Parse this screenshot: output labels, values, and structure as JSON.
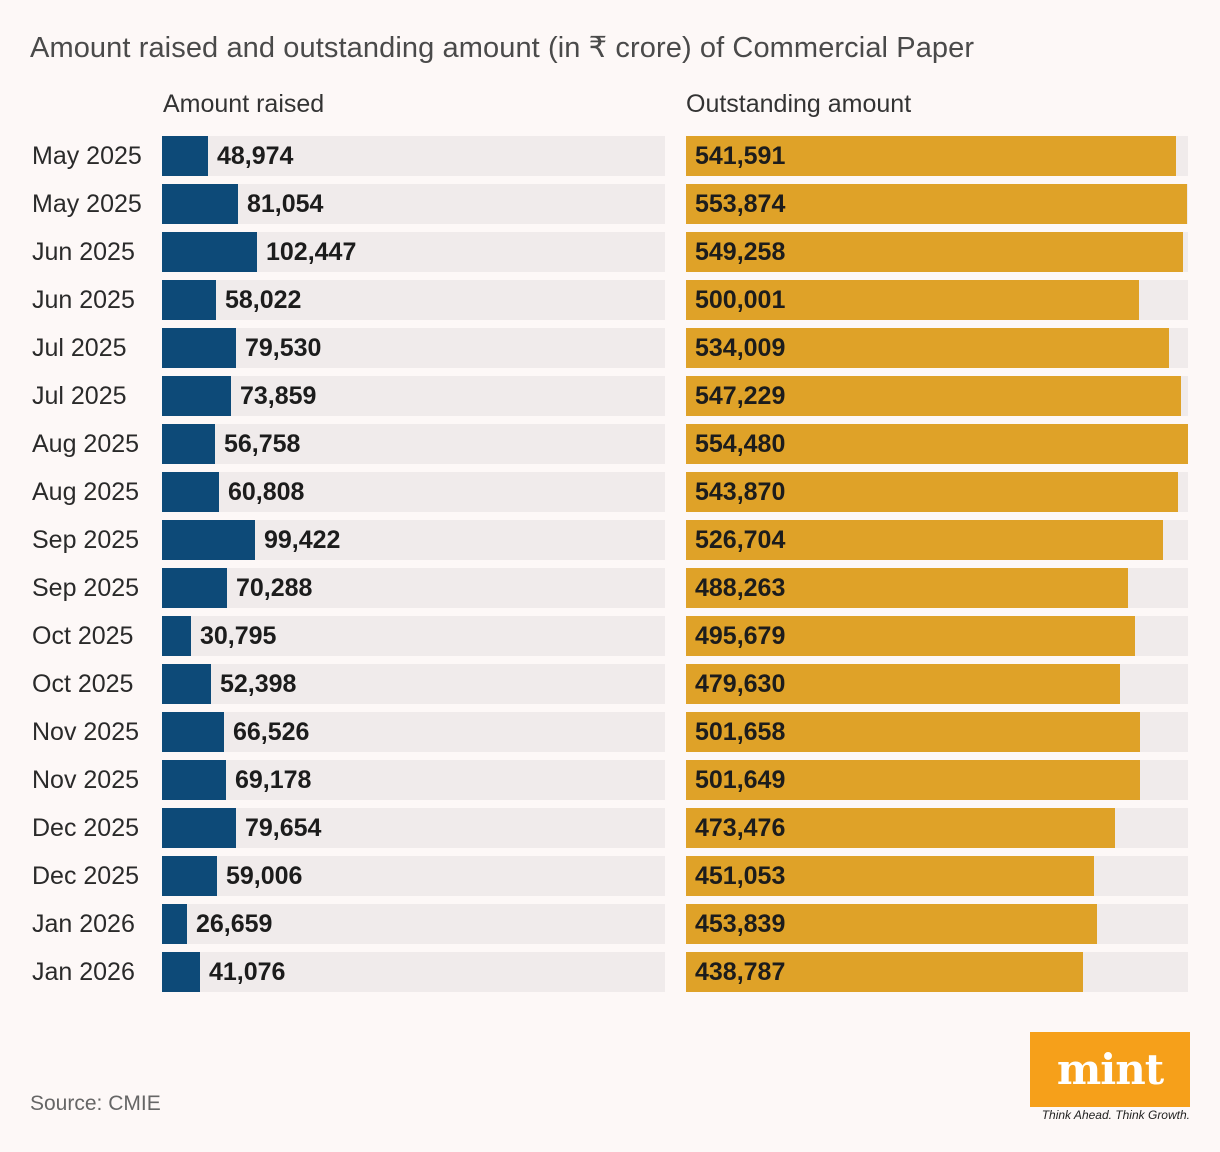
{
  "header": {
    "title": "Amount raised and outstanding amount (in ₹ crore) of Commercial Paper"
  },
  "footer": {
    "source": "Source: CMIE",
    "logo_text": "mint",
    "tagline": "Think Ahead. Think Growth."
  },
  "colors": {
    "raised": "#0d4a78",
    "outstanding": "#dfa228",
    "track": "#f0ebeb",
    "logo": "#f6a01a"
  },
  "chart_data": {
    "type": "bar",
    "orientation": "horizontal",
    "title": "Amount raised and outstanding amount (in ₹ crore) of Commercial Paper",
    "categories": [
      "May 2025",
      "May 2025",
      "Jun 2025",
      "Jun 2025",
      "Jul 2025",
      "Jul 2025",
      "Aug 2025",
      "Aug 2025",
      "Sep 2025",
      "Sep 2025",
      "Oct 2025",
      "Oct 2025",
      "Nov 2025",
      "Nov 2025",
      "Dec 2025",
      "Dec 2025",
      "Jan 2026",
      "Jan 2026"
    ],
    "series": [
      {
        "name": "Amount raised",
        "values": [
          48974,
          81054,
          102447,
          58022,
          79530,
          73859,
          56758,
          60808,
          99422,
          70288,
          30795,
          52398,
          66526,
          69178,
          79654,
          59006,
          26659,
          41076
        ],
        "labels": [
          "48,974",
          "81,054",
          "102,447",
          "58,022",
          "79,530",
          "73,859",
          "56,758",
          "60,808",
          "99,422",
          "70,288",
          "30,795",
          "52,398",
          "66,526",
          "69,178",
          "79,654",
          "59,006",
          "26,659",
          "41,076"
        ],
        "scale_max": 540000
      },
      {
        "name": "Outstanding amount",
        "values": [
          541591,
          553874,
          549258,
          500001,
          534009,
          547229,
          554480,
          543870,
          526704,
          488263,
          495679,
          479630,
          501658,
          501649,
          473476,
          451053,
          453839,
          438787
        ],
        "labels": [
          "541,591",
          "553,874",
          "549,258",
          "500,001",
          "534,009",
          "547,229",
          "554,480",
          "543,870",
          "526,704",
          "488,263",
          "495,679",
          "479,630",
          "501,658",
          "501,649",
          "473,476",
          "451,053",
          "453,839",
          "438,787"
        ],
        "scale_max": 554480
      }
    ]
  }
}
